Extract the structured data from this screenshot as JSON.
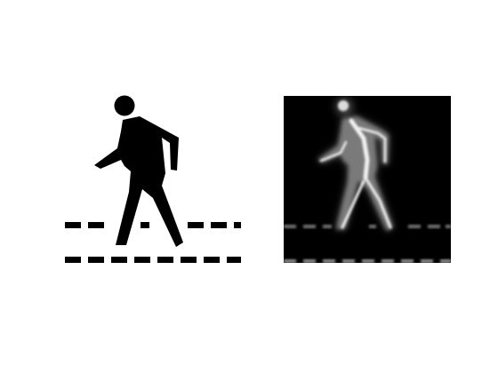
{
  "figure": {
    "left_panel": {
      "subject": "pedestrian-crossing-icon",
      "foreground_color": "#000000",
      "background_color": "#ffffff"
    },
    "right_panel": {
      "subject": "pedestrian-crossing-blurred-inverse",
      "foreground_color": "#ffffff",
      "background_color": "#000000"
    }
  }
}
